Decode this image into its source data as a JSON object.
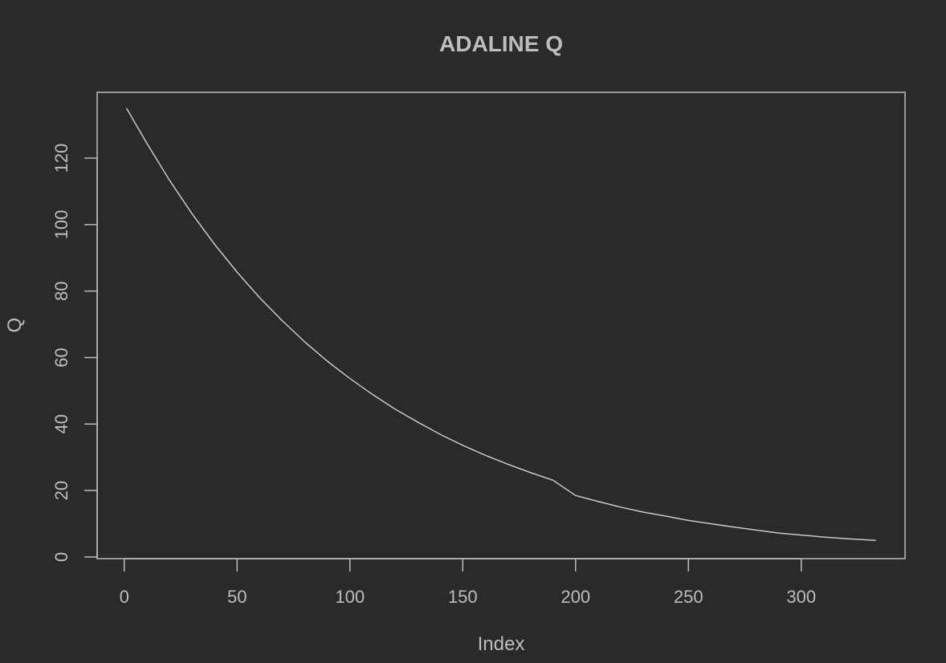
{
  "colors": {
    "background": "#2a2a2a",
    "foreground": "#bdbdbd",
    "line": "#c8c8c8"
  },
  "chart_data": {
    "type": "line",
    "title": "ADALINE Q",
    "xlabel": "Index",
    "ylabel": "Q",
    "xlim": [
      -12,
      346
    ],
    "ylim": [
      -0.5,
      139.8
    ],
    "x_ticks": [
      0,
      50,
      100,
      150,
      200,
      250,
      300
    ],
    "y_ticks": [
      0,
      20,
      40,
      60,
      80,
      100,
      120
    ],
    "grid": false,
    "legend": "none",
    "series": [
      {
        "x": [
          1,
          10,
          20,
          30,
          40,
          50,
          60,
          70,
          80,
          90,
          100,
          110,
          120,
          130,
          140,
          150,
          160,
          170,
          180,
          190,
          200,
          210,
          220,
          230,
          240,
          250,
          260,
          270,
          280,
          290,
          300,
          310,
          320,
          333
        ],
        "values": [
          135.0,
          124.5,
          113.4,
          103.3,
          94.1,
          85.7,
          78.0,
          71.1,
          64.7,
          58.9,
          53.7,
          48.9,
          44.5,
          40.6,
          36.9,
          33.6,
          30.6,
          27.9,
          25.4,
          23.1,
          18.5,
          16.7,
          15.0,
          13.5,
          12.3,
          11.0,
          10.0,
          9.0,
          8.1,
          7.2,
          6.6,
          6.0,
          5.5,
          5.0
        ]
      }
    ]
  }
}
